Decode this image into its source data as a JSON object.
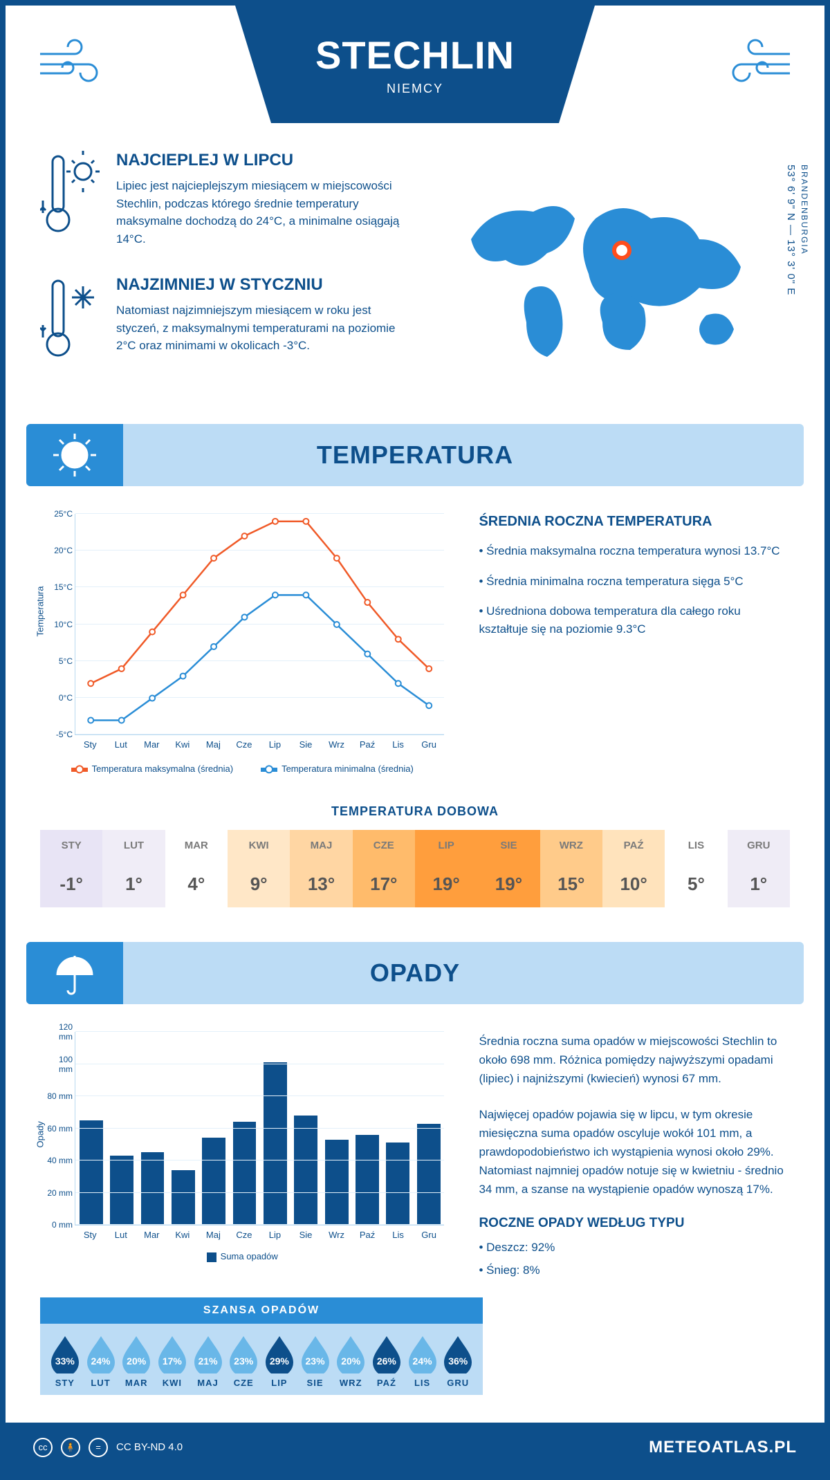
{
  "header": {
    "city": "STECHLIN",
    "country": "NIEMCY"
  },
  "location": {
    "coords": "53° 6' 9\" N — 13° 3' 0\" E",
    "region": "BRANDENBURGIA"
  },
  "facts": {
    "warm": {
      "title": "NAJCIEPLEJ W LIPCU",
      "text": "Lipiec jest najcieplejszym miesiącem w miejscowości Stechlin, podczas którego średnie temperatury maksymalne dochodzą do 24°C, a minimalne osiągają 14°C."
    },
    "cold": {
      "title": "NAJZIMNIEJ W STYCZNIU",
      "text": "Natomiast najzimniejszym miesiącem w roku jest styczeń, z maksymalnymi temperaturami na poziomie 2°C oraz minimami w okolicach -3°C."
    }
  },
  "sections": {
    "temperature": "TEMPERATURA",
    "precipitation": "OPADY"
  },
  "months": [
    "Sty",
    "Lut",
    "Mar",
    "Kwi",
    "Maj",
    "Cze",
    "Lip",
    "Sie",
    "Wrz",
    "Paź",
    "Lis",
    "Gru"
  ],
  "months_upper": [
    "STY",
    "LUT",
    "MAR",
    "KWI",
    "MAJ",
    "CZE",
    "LIP",
    "SIE",
    "WRZ",
    "PAŹ",
    "LIS",
    "GRU"
  ],
  "temp_chart": {
    "type": "line",
    "ylabel": "Temperatura",
    "ylim": [
      -5,
      25
    ],
    "ytick_step": 5,
    "ytick_labels": [
      "-5°C",
      "0°C",
      "5°C",
      "10°C",
      "15°C",
      "20°C",
      "25°C"
    ],
    "max_series": {
      "label": "Temperatura maksymalna (średnia)",
      "color": "#f05a28",
      "values": [
        2,
        4,
        9,
        14,
        19,
        22,
        24,
        24,
        19,
        13,
        8,
        4
      ]
    },
    "min_series": {
      "label": "Temperatura minimalna (średnia)",
      "color": "#2a8dd6",
      "values": [
        -3,
        -3,
        0,
        3,
        7,
        11,
        14,
        14,
        10,
        6,
        2,
        -1
      ]
    },
    "grid_color": "#e3f0fa",
    "background_color": "#ffffff"
  },
  "temp_stats": {
    "heading": "ŚREDNIA ROCZNA TEMPERATURA",
    "bullets": [
      "• Średnia maksymalna roczna temperatura wynosi 13.7°C",
      "• Średnia minimalna roczna temperatura sięga 5°C",
      "• Uśredniona dobowa temperatura dla całego roku kształtuje się na poziomie 9.3°C"
    ]
  },
  "daily_temp": {
    "heading": "TEMPERATURA DOBOWA",
    "values": [
      "-1°",
      "1°",
      "4°",
      "9°",
      "13°",
      "17°",
      "19°",
      "19°",
      "15°",
      "10°",
      "5°",
      "1°"
    ],
    "cell_colors": [
      "#e8e4f5",
      "#f0edf7",
      "#ffffff",
      "#ffe7c7",
      "#ffd6a3",
      "#ffbb6b",
      "#ff9e3d",
      "#ff9e3d",
      "#ffcb8a",
      "#ffe3bc",
      "#ffffff",
      "#efecf6"
    ]
  },
  "precip_chart": {
    "type": "bar",
    "ylabel": "Opady",
    "ylim": [
      0,
      120
    ],
    "ytick_step": 20,
    "ytick_labels": [
      "0 mm",
      "20 mm",
      "40 mm",
      "60 mm",
      "80 mm",
      "100 mm",
      "120 mm"
    ],
    "values": [
      65,
      43,
      45,
      34,
      54,
      64,
      101,
      68,
      53,
      56,
      51,
      63
    ],
    "bar_color": "#0d4f8b",
    "legend": "Suma opadów",
    "grid_color": "#e3f0fa"
  },
  "precip_text": {
    "p1": "Średnia roczna suma opadów w miejscowości Stechlin to około 698 mm. Różnica pomiędzy najwyższymi opadami (lipiec) i najniższymi (kwiecień) wynosi 67 mm.",
    "p2": "Najwięcej opadów pojawia się w lipcu, w tym okresie miesięczna suma opadów oscyluje wokół 101 mm, a prawdopodobieństwo ich wystąpienia wynosi około 29%. Natomiast najmniej opadów notuje się w kwietniu - średnio 34 mm, a szanse na wystąpienie opadów wynoszą 17%.",
    "type_heading": "ROCZNE OPADY WEDŁUG TYPU",
    "type_bullets": [
      "• Deszcz: 92%",
      "• Śnieg: 8%"
    ]
  },
  "chance": {
    "heading": "SZANSA OPADÓW",
    "values": [
      "33%",
      "24%",
      "20%",
      "17%",
      "21%",
      "23%",
      "29%",
      "23%",
      "20%",
      "26%",
      "24%",
      "36%"
    ],
    "dark_indices": [
      0,
      6,
      9,
      11
    ],
    "drop_dark": "#0d4f8b",
    "drop_light": "#69b7e8"
  },
  "footer": {
    "license": "CC BY-ND 4.0",
    "site": "METEOATLAS.PL"
  }
}
